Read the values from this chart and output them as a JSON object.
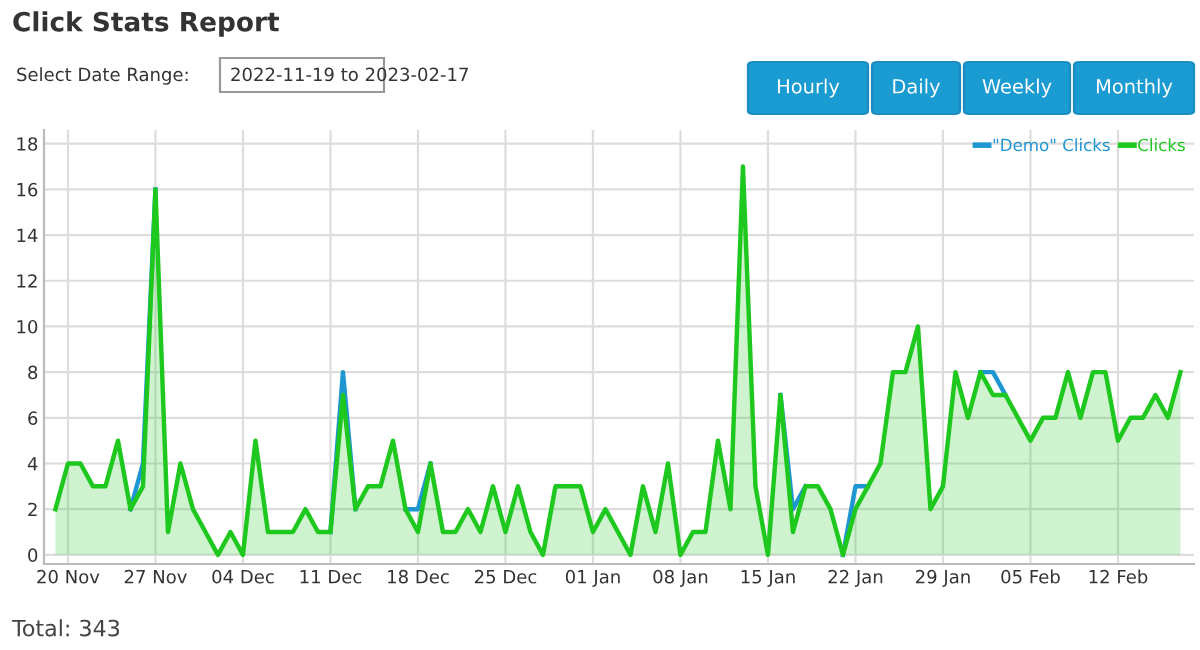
{
  "chart_data": {
    "type": "line",
    "title": "Click Stats Report",
    "annotations": [
      "Select Date Range:",
      "2022-11-19 to 2023-02-17",
      "Hourly",
      "Daily",
      "Weekly",
      "Monthly",
      "Total: 343"
    ],
    "x": [
      "2022-11-19",
      "2022-11-20",
      "2022-11-21",
      "2022-11-22",
      "2022-11-23",
      "2022-11-24",
      "2022-11-25",
      "2022-11-26",
      "2022-11-27",
      "2022-11-28",
      "2022-11-29",
      "2022-11-30",
      "2022-12-01",
      "2022-12-02",
      "2022-12-03",
      "2022-12-04",
      "2022-12-05",
      "2022-12-06",
      "2022-12-07",
      "2022-12-08",
      "2022-12-09",
      "2022-12-10",
      "2022-12-11",
      "2022-12-12",
      "2022-12-13",
      "2022-12-14",
      "2022-12-15",
      "2022-12-16",
      "2022-12-17",
      "2022-12-18",
      "2022-12-19",
      "2022-12-20",
      "2022-12-21",
      "2022-12-22",
      "2022-12-23",
      "2022-12-24",
      "2022-12-25",
      "2022-12-26",
      "2022-12-27",
      "2022-12-28",
      "2022-12-29",
      "2022-12-30",
      "2022-12-31",
      "2023-01-01",
      "2023-01-02",
      "2023-01-03",
      "2023-01-04",
      "2023-01-05",
      "2023-01-06",
      "2023-01-07",
      "2023-01-08",
      "2023-01-09",
      "2023-01-10",
      "2023-01-11",
      "2023-01-12",
      "2023-01-13",
      "2023-01-14",
      "2023-01-15",
      "2023-01-16",
      "2023-01-17",
      "2023-01-18",
      "2023-01-19",
      "2023-01-20",
      "2023-01-21",
      "2023-01-22",
      "2023-01-23",
      "2023-01-24",
      "2023-01-25",
      "2023-01-26",
      "2023-01-27",
      "2023-01-28",
      "2023-01-29",
      "2023-01-30",
      "2023-01-31",
      "2023-02-01",
      "2023-02-02",
      "2023-02-03",
      "2023-02-04",
      "2023-02-05",
      "2023-02-06",
      "2023-02-07",
      "2023-02-08",
      "2023-02-09",
      "2023-02-10",
      "2023-02-11",
      "2023-02-12",
      "2023-02-13",
      "2023-02-14",
      "2023-02-15",
      "2023-02-16",
      "2023-02-17"
    ],
    "series": [
      {
        "name": "\"Demo\" Clicks",
        "color": "#1e96d2",
        "values": [
          null,
          null,
          null,
          null,
          null,
          null,
          2,
          4,
          16,
          null,
          null,
          null,
          null,
          null,
          null,
          null,
          null,
          null,
          null,
          null,
          null,
          null,
          1,
          8,
          2,
          null,
          null,
          null,
          2,
          2,
          4,
          null,
          null,
          null,
          null,
          null,
          null,
          null,
          null,
          null,
          null,
          null,
          null,
          null,
          null,
          null,
          null,
          null,
          null,
          null,
          null,
          null,
          null,
          null,
          null,
          null,
          null,
          null,
          7,
          2,
          3,
          null,
          null,
          0,
          3,
          3,
          null,
          null,
          null,
          null,
          null,
          null,
          null,
          null,
          8,
          8,
          7,
          null,
          null,
          null,
          null,
          null,
          null,
          null,
          null,
          null,
          null,
          null,
          null,
          null,
          null
        ]
      },
      {
        "name": "Clicks",
        "type": "area",
        "color": "#1ec81e",
        "values": [
          2,
          4,
          4,
          3,
          3,
          5,
          2,
          3,
          16,
          1,
          4,
          2,
          1,
          0,
          1,
          0,
          5,
          1,
          1,
          1,
          2,
          1,
          1,
          7,
          2,
          3,
          3,
          5,
          2,
          1,
          4,
          1,
          1,
          2,
          1,
          3,
          1,
          3,
          1,
          0,
          3,
          3,
          3,
          1,
          2,
          1,
          0,
          3,
          1,
          4,
          0,
          1,
          1,
          5,
          2,
          17,
          3,
          0,
          7,
          1,
          3,
          3,
          2,
          0,
          2,
          3,
          4,
          8,
          8,
          10,
          2,
          3,
          8,
          6,
          8,
          7,
          7,
          6,
          5,
          6,
          6,
          8,
          6,
          8,
          8,
          5,
          6,
          6,
          7,
          6,
          8
        ]
      }
    ],
    "xlim": [
      "2022-11-18T02:00",
      "2023-02-18T02:00"
    ],
    "xticks": [
      {
        "value": "2022-11-20",
        "label": "20 Nov"
      },
      {
        "value": "2022-11-27",
        "label": "27 Nov"
      },
      {
        "value": "2022-12-04",
        "label": "04 Dec"
      },
      {
        "value": "2022-12-11",
        "label": "11 Dec"
      },
      {
        "value": "2022-12-18",
        "label": "18 Dec"
      },
      {
        "value": "2022-12-25",
        "label": "25 Dec"
      },
      {
        "value": "2023-01-01",
        "label": "01 Jan"
      },
      {
        "value": "2023-01-08",
        "label": "08 Jan"
      },
      {
        "value": "2023-01-15",
        "label": "15 Jan"
      },
      {
        "value": "2023-01-22",
        "label": "22 Jan"
      },
      {
        "value": "2023-01-29",
        "label": "29 Jan"
      },
      {
        "value": "2023-02-05",
        "label": "05 Feb"
      },
      {
        "value": "2023-02-12",
        "label": "12 Feb"
      }
    ],
    "ylim": [
      -0.4,
      18.6
    ],
    "yticks": [
      0,
      2,
      4,
      6,
      8,
      10,
      12,
      14,
      16,
      18
    ],
    "grid": true,
    "legend": "top right",
    "marker": "none",
    "line_style": "solid"
  }
}
